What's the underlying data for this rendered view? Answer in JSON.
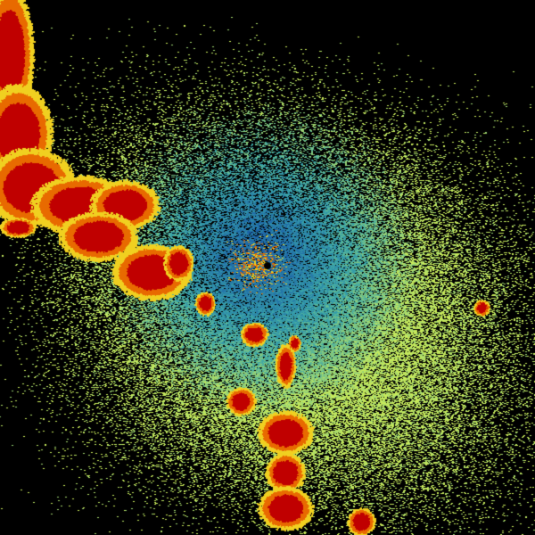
{
  "image": {
    "background": "#000000",
    "palette": {
      "near": "#1a5fa8",
      "mid": "#3aa6a8",
      "far": "#c8ea5a",
      "core_heavy": "#c00000",
      "edge_heavy": "#e86a00",
      "rim_heavy": "#f0d020"
    }
  }
}
